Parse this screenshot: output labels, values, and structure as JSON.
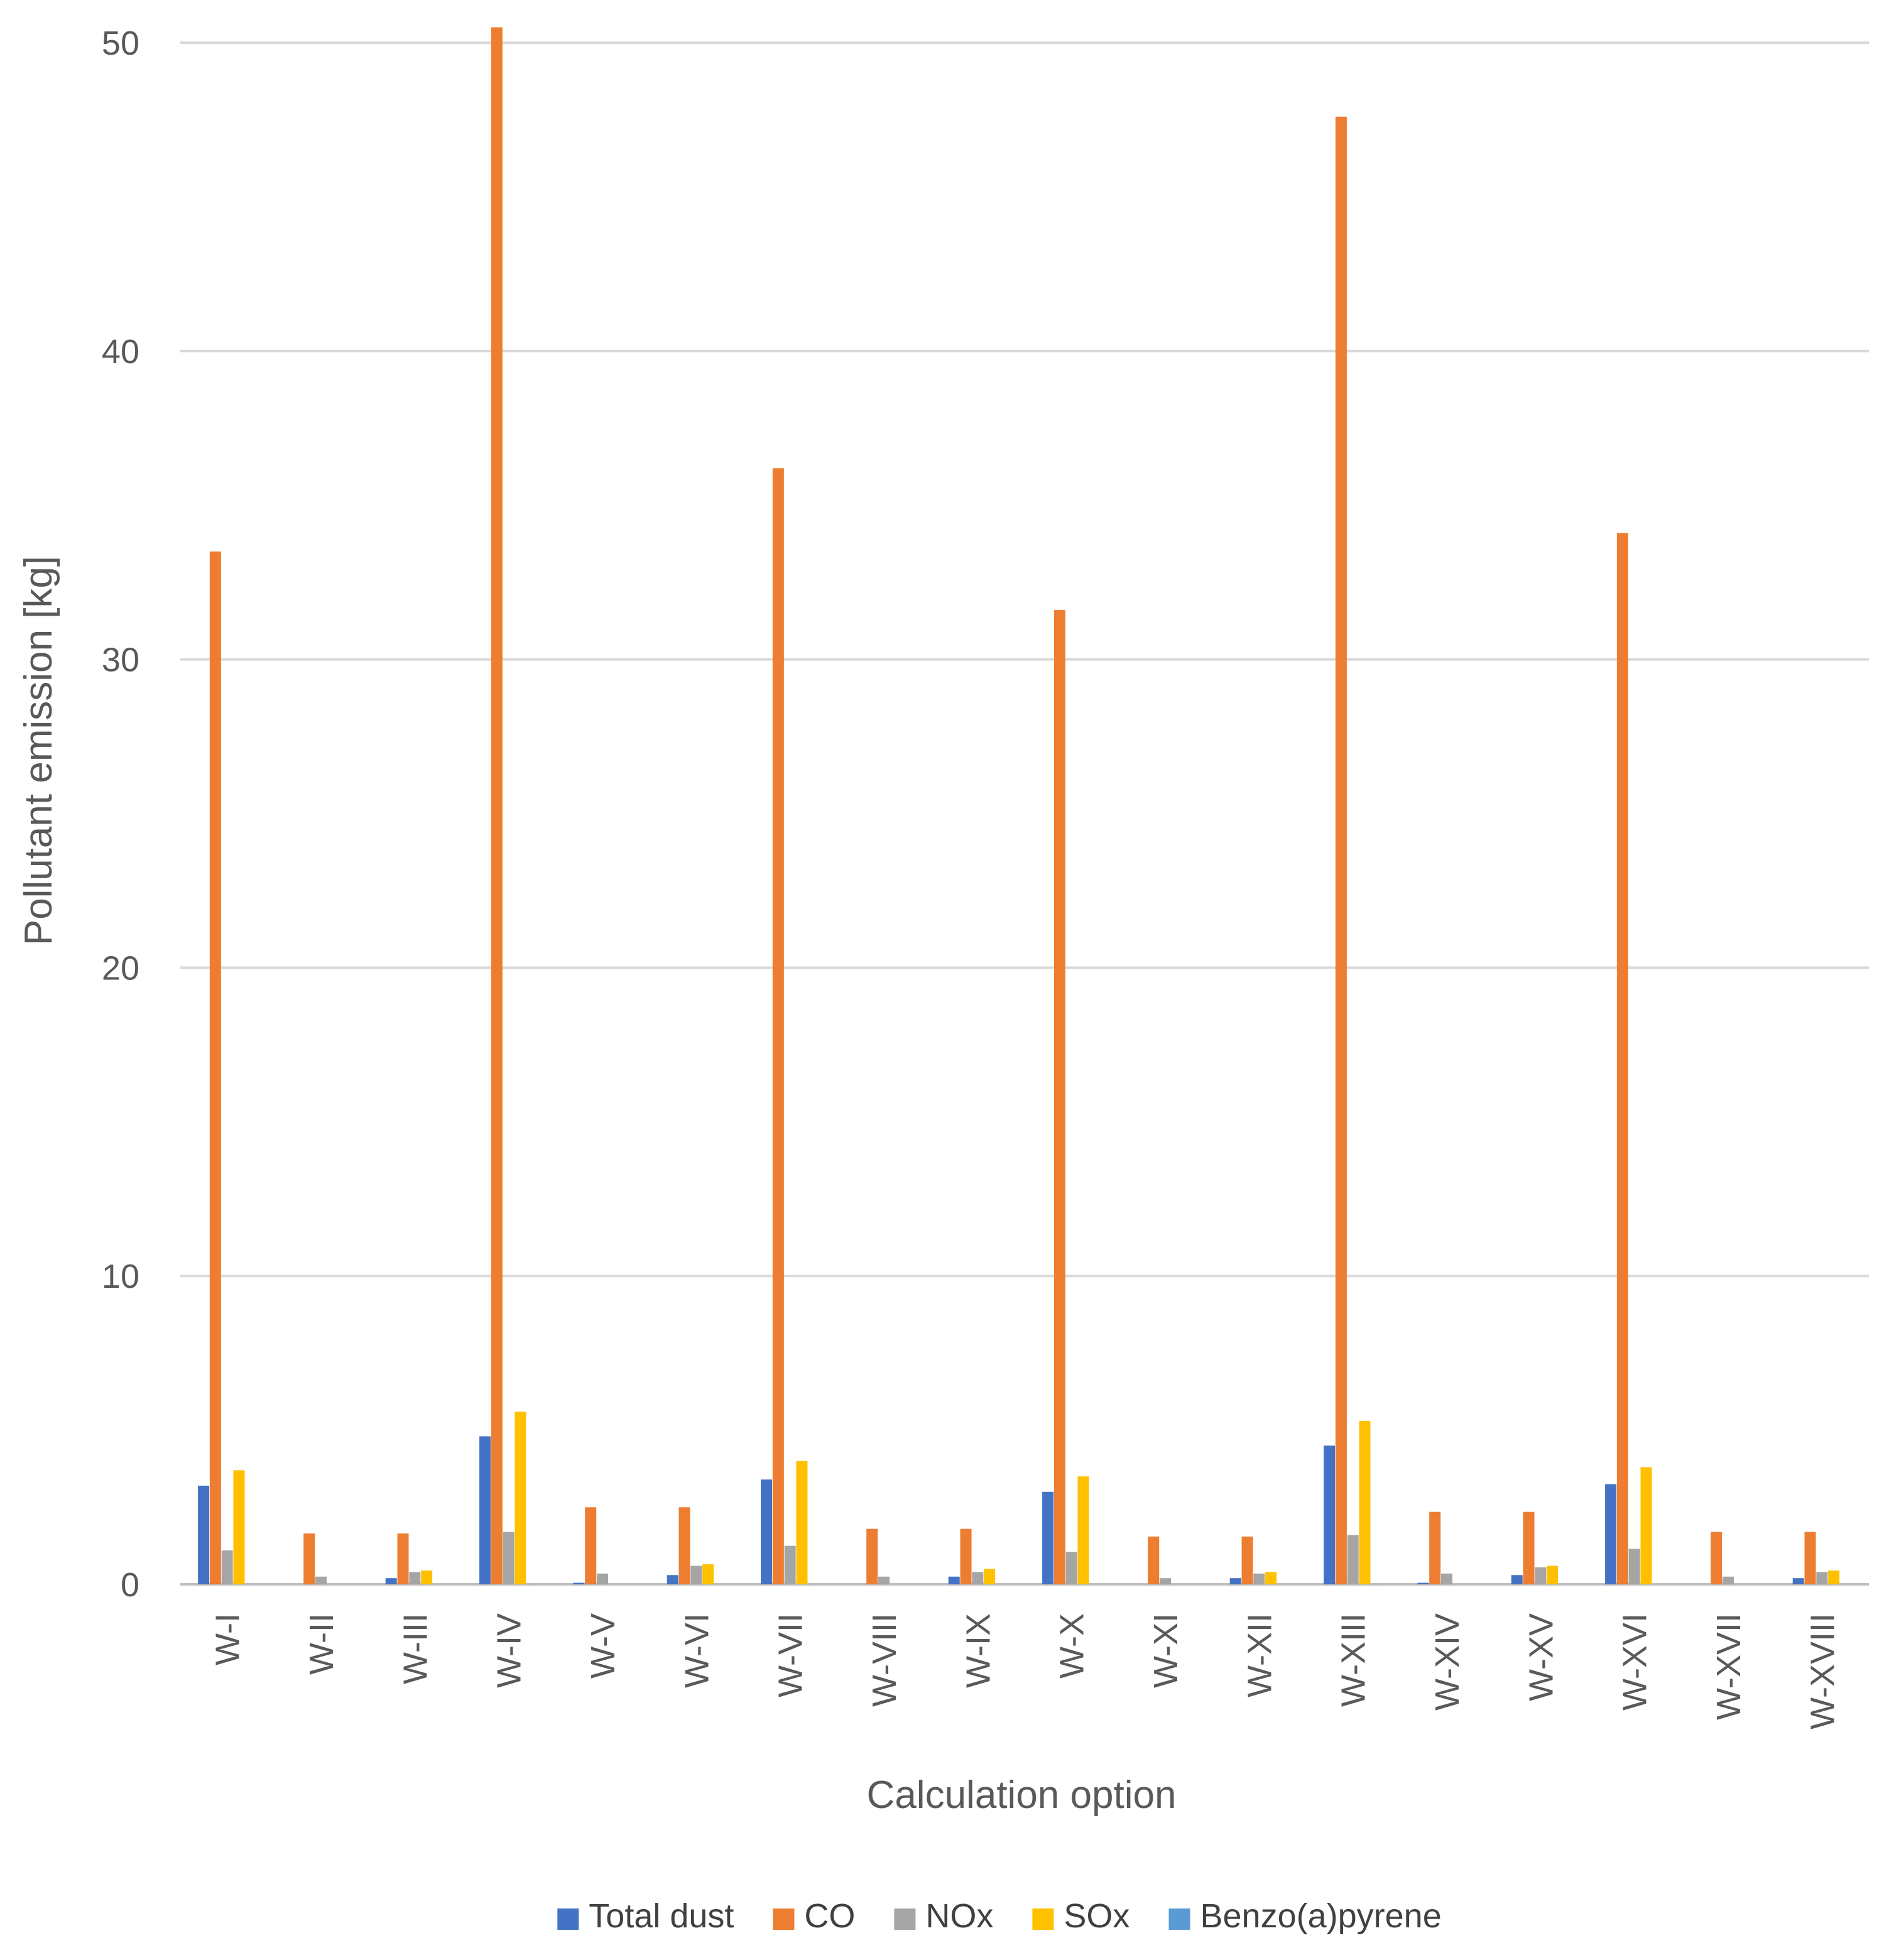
{
  "chart_data": {
    "type": "bar",
    "title": "",
    "xlabel": "Calculation option",
    "ylabel": "Pollutant emission [kg]",
    "ylim": [
      0,
      50
    ],
    "yticks": [
      0,
      10,
      20,
      30,
      40,
      50
    ],
    "grid": true,
    "legend_position": "bottom",
    "categories": [
      "W-I",
      "W-II",
      "W-III",
      "W-IV",
      "W-V",
      "W-VI",
      "W-VII",
      "W-VIII",
      "W-IX",
      "W-X",
      "W-XI",
      "W-XII",
      "W-XIII",
      "W-XIV",
      "W-XV",
      "W-XVI",
      "W-XVII",
      "W-XVIII"
    ],
    "series": [
      {
        "name": "Total dust",
        "color": "#4472C4",
        "values": [
          3.2,
          0.0,
          0.2,
          4.8,
          0.05,
          0.3,
          3.4,
          0.0,
          0.25,
          3.0,
          0.0,
          0.2,
          4.5,
          0.05,
          0.3,
          3.25,
          0.0,
          0.2
        ]
      },
      {
        "name": "CO",
        "color": "#ED7D31",
        "values": [
          33.5,
          1.65,
          1.65,
          50.5,
          2.5,
          2.5,
          36.2,
          1.8,
          1.8,
          31.6,
          1.55,
          1.55,
          47.6,
          2.35,
          2.35,
          34.1,
          1.7,
          1.7
        ]
      },
      {
        "name": "NOx",
        "color": "#A5A5A5",
        "values": [
          1.1,
          0.25,
          0.4,
          1.7,
          0.35,
          0.6,
          1.25,
          0.25,
          0.4,
          1.05,
          0.2,
          0.35,
          1.6,
          0.35,
          0.55,
          1.15,
          0.25,
          0.4
        ]
      },
      {
        "name": "SOx",
        "color": "#FFC000",
        "values": [
          3.7,
          0.0,
          0.45,
          5.6,
          0.0,
          0.65,
          4.0,
          0.0,
          0.5,
          3.5,
          0.0,
          0.4,
          5.3,
          0.0,
          0.6,
          3.8,
          0.0,
          0.45
        ]
      },
      {
        "name": "Benzo(a)pyrene",
        "color": "#5B9BD5",
        "values": [
          0.003,
          0.0,
          0.0,
          0.005,
          0.0,
          0.0,
          0.004,
          0.0,
          0.0,
          0.003,
          0.0,
          0.0,
          0.005,
          0.0,
          0.0,
          0.003,
          0.0,
          0.0
        ]
      }
    ]
  }
}
